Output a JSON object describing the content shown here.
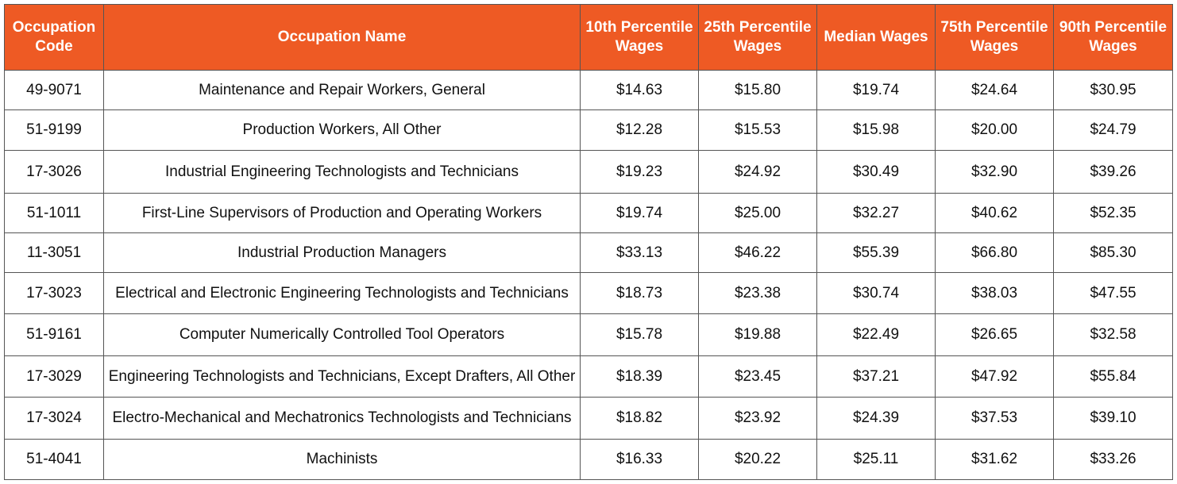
{
  "table": {
    "header": [
      "Occupation Code",
      "Occupation Name",
      "10th Percentile Wages",
      "25th Percentile Wages",
      "Median Wages",
      "75th Percentile Wages",
      "90th Percentile Wages"
    ],
    "rows": [
      [
        "49-9071",
        "Maintenance and Repair Workers, General",
        "$14.63",
        "$15.80",
        "$19.74",
        "$24.64",
        "$30.95"
      ],
      [
        "51-9199",
        "Production Workers, All Other",
        "$12.28",
        "$15.53",
        "$15.98",
        "$20.00",
        "$24.79"
      ],
      [
        "17-3026",
        "Industrial Engineering Technologists and Technicians",
        "$19.23",
        "$24.92",
        "$30.49",
        "$32.90",
        "$39.26"
      ],
      [
        "51-1011",
        "First-Line Supervisors of Production and Operating Workers",
        "$19.74",
        "$25.00",
        "$32.27",
        "$40.62",
        "$52.35"
      ],
      [
        "11-3051",
        "Industrial Production Managers",
        "$33.13",
        "$46.22",
        "$55.39",
        "$66.80",
        "$85.30"
      ],
      [
        "17-3023",
        "Electrical and Electronic Engineering Technologists and Technicians",
        "$18.73",
        "$23.38",
        "$30.74",
        "$38.03",
        "$47.55"
      ],
      [
        "51-9161",
        "Computer Numerically Controlled Tool Operators",
        "$15.78",
        "$19.88",
        "$22.49",
        "$26.65",
        "$32.58"
      ],
      [
        "17-3029",
        "Engineering Technologists and Technicians, Except Drafters, All Other",
        "$18.39",
        "$23.45",
        "$37.21",
        "$47.92",
        "$55.84"
      ],
      [
        "17-3024",
        "Electro-Mechanical and Mechatronics Technologists and Technicians",
        "$18.82",
        "$23.92",
        "$24.39",
        "$37.53",
        "$39.10"
      ],
      [
        "51-4041",
        "Machinists",
        "$16.33",
        "$20.22",
        "$25.11",
        "$31.62",
        "$33.26"
      ]
    ]
  }
}
